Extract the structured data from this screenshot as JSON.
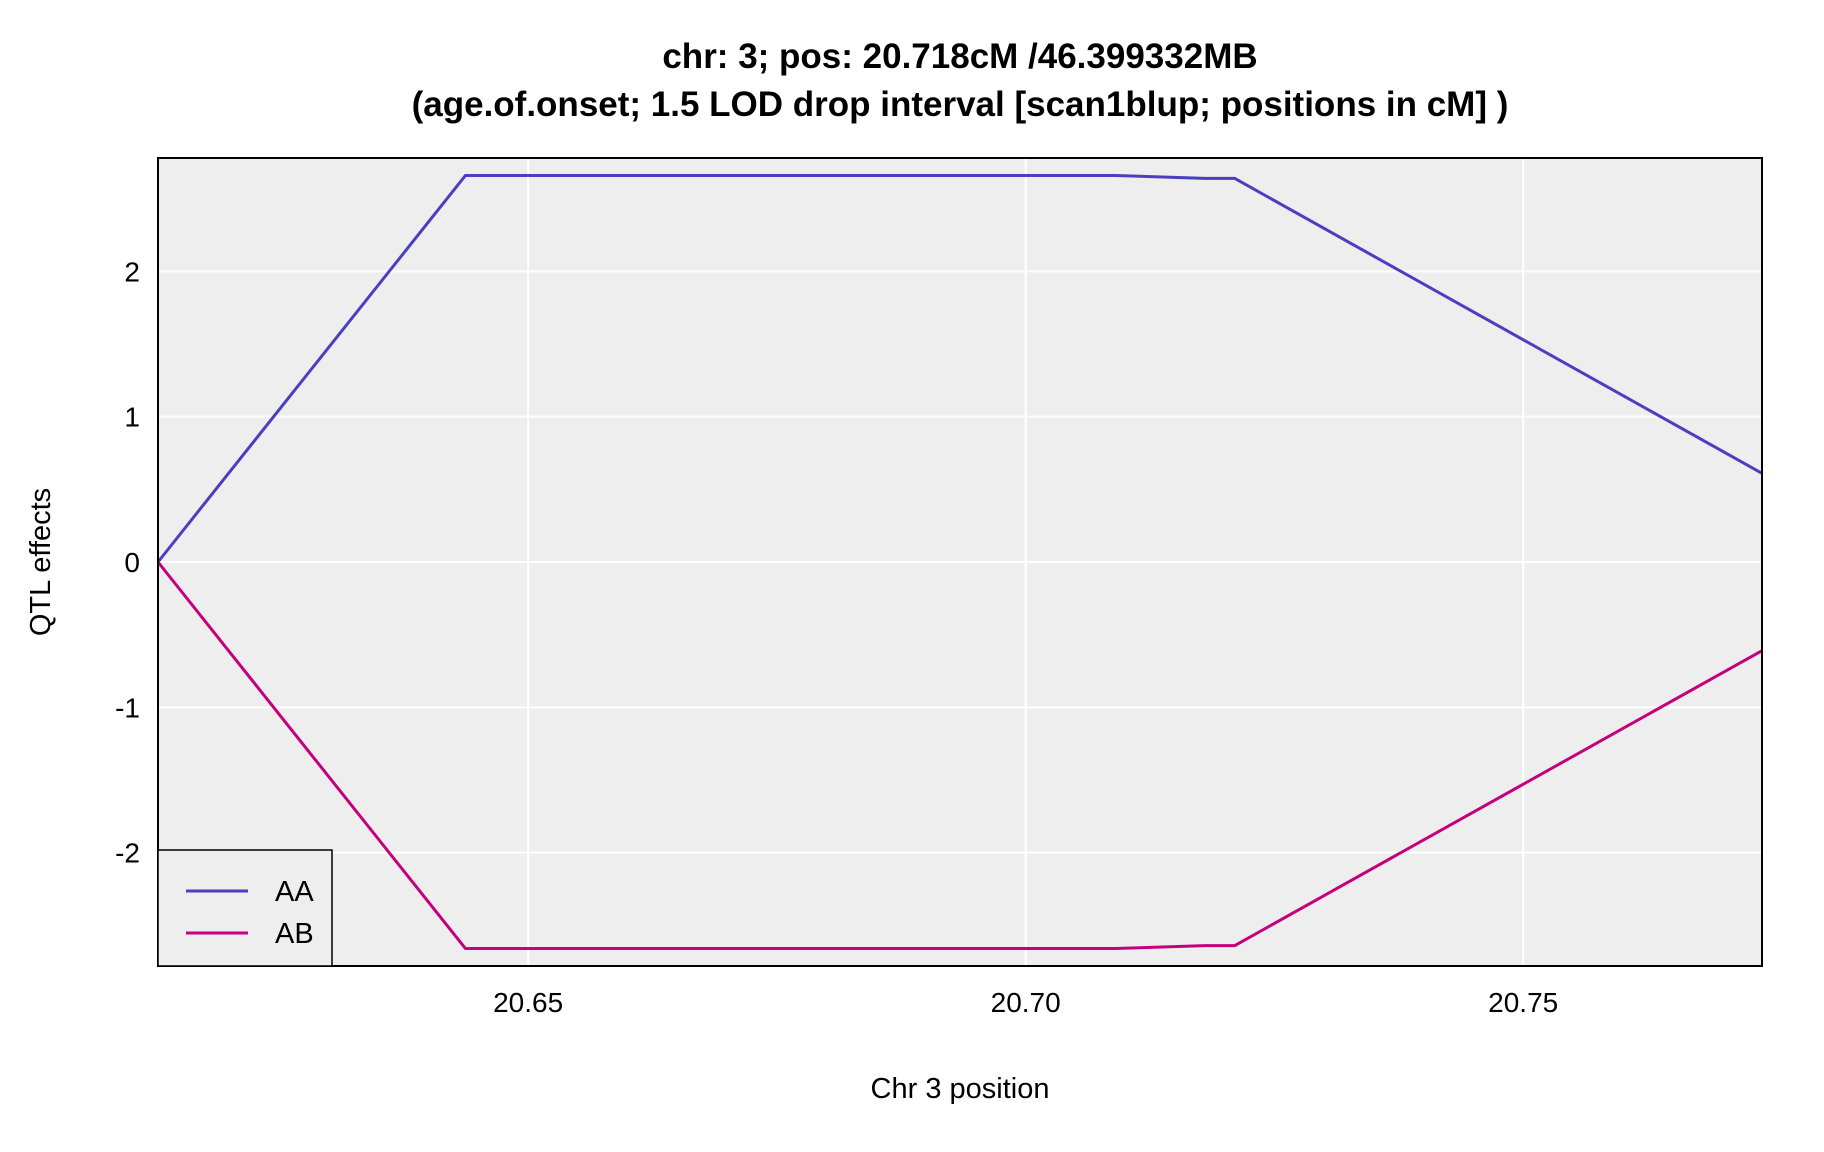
{
  "chart_data": {
    "type": "line",
    "title": "chr: 3; pos: 20.718cM /46.399332MB",
    "subtitle": "(age.of.onset; 1.5 LOD drop interval [scan1blup; positions in cM] )",
    "xlabel": "Chr 3 position",
    "ylabel": "QTL effects",
    "xlim": [
      20.6128,
      20.774
    ],
    "ylim": [
      -2.78,
      2.78
    ],
    "xticks": [
      20.65,
      20.7,
      20.75
    ],
    "xtick_labels": [
      "20.65",
      "20.70",
      "20.75"
    ],
    "yticks": [
      2,
      1,
      0,
      -1,
      -2
    ],
    "ytick_labels": [
      "2",
      "1",
      "0",
      "-1",
      "-2"
    ],
    "grid": true,
    "legend_position": "bottom-left",
    "x": [
      20.6128,
      20.6437,
      20.709,
      20.718,
      20.721,
      20.774
    ],
    "series": [
      {
        "name": "AA",
        "color": "#4B3FC0",
        "values": [
          0,
          2.66,
          2.66,
          2.64,
          2.64,
          0.61
        ]
      },
      {
        "name": "AB",
        "color": "#C4007E",
        "values": [
          0,
          -2.66,
          -2.66,
          -2.64,
          -2.64,
          -0.61
        ]
      }
    ]
  }
}
